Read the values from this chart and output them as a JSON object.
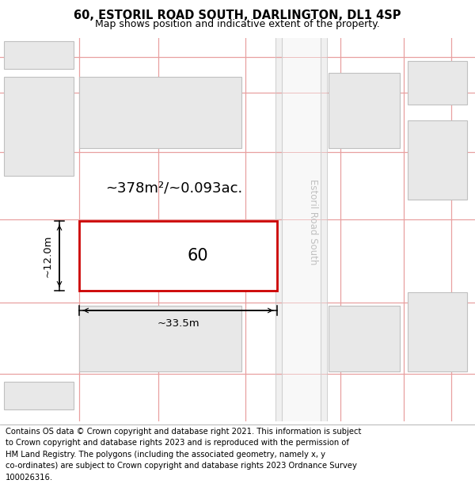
{
  "title_line1": "60, ESTORIL ROAD SOUTH, DARLINGTON, DL1 4SP",
  "title_line2": "Map shows position and indicative extent of the property.",
  "footer_text": "Contains OS data © Crown copyright and database right 2021. This information is subject\nto Crown copyright and database rights 2023 and is reproduced with the permission of\nHM Land Registry. The polygons (including the associated geometry, namely x, y\nco-ordinates) are subject to Crown copyright and database rights 2023 Ordnance Survey\n100026316.",
  "map_bg": "#ffffff",
  "building_fill": "#e8e8e8",
  "building_edge": "#c0c0c0",
  "highlight_fill": "#ffffff",
  "highlight_edge": "#cc0000",
  "grid_line_color": "#e8a0a0",
  "road_fill": "#f5f5f5",
  "road_label": "Estoril Road South",
  "road_label_color": "#c0c0c0",
  "plot_label": "60",
  "area_label": "~378m²/~0.093ac.",
  "dim_width": "~33.5m",
  "dim_height": "~12.0m",
  "title_fontsize": 10.5,
  "subtitle_fontsize": 9.0,
  "footer_fontsize": 7.2,
  "area_fontsize": 13.0,
  "plot_fontsize": 15,
  "dim_fontsize": 9.5
}
